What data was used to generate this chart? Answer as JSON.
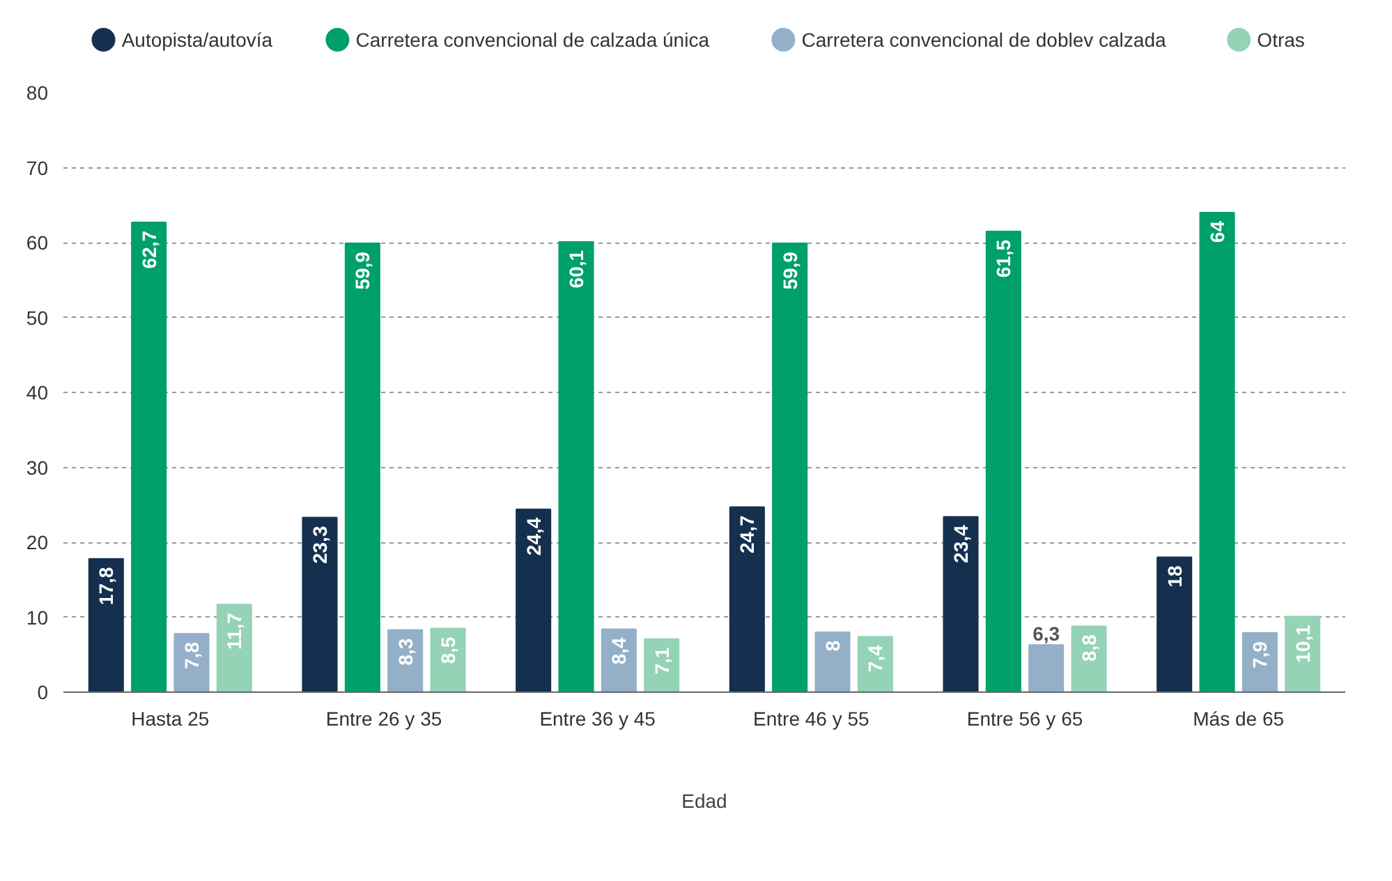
{
  "chart_data": {
    "type": "bar",
    "xlabel": "Edad",
    "categories": [
      "Hasta 25",
      "Entre 26 y 35",
      "Entre 36 y 45",
      "Entre 46 y 55",
      "Entre 56 y 65",
      "Más de 65"
    ],
    "series": [
      {
        "name": "Autopista/autovía",
        "color": "#15304f",
        "values": [
          17.8,
          23.3,
          24.4,
          24.7,
          23.4,
          18
        ],
        "value_labels": [
          "17,8",
          "23,3",
          "24,4",
          "24,7",
          "23,4",
          "18"
        ]
      },
      {
        "name": "Carretera convencional de calzada única",
        "color": "#00a06b",
        "values": [
          62.7,
          59.9,
          60.1,
          59.9,
          61.5,
          64
        ],
        "value_labels": [
          "62,7",
          "59,9",
          "60,1",
          "59,9",
          "61,5",
          "64"
        ]
      },
      {
        "name": "Carretera convencional de doblev calzada",
        "color": "#94afc8",
        "values": [
          7.8,
          8.3,
          8.4,
          8,
          6.3,
          7.9
        ],
        "value_labels": [
          "7,8",
          "8,3",
          "8,4",
          "8",
          "6,3",
          "7,9"
        ]
      },
      {
        "name": "Otras",
        "color": "#94d3b5",
        "values": [
          11.7,
          8.5,
          7.1,
          7.4,
          8.8,
          10.1
        ],
        "value_labels": [
          "11,7",
          "8,5",
          "7,1",
          "7,4",
          "8,8",
          "10,1"
        ]
      }
    ],
    "ylim": [
      0,
      80
    ],
    "yticks": [
      0,
      10,
      20,
      30,
      40,
      50,
      60,
      70,
      80
    ],
    "grid": "y",
    "legend": "top"
  }
}
